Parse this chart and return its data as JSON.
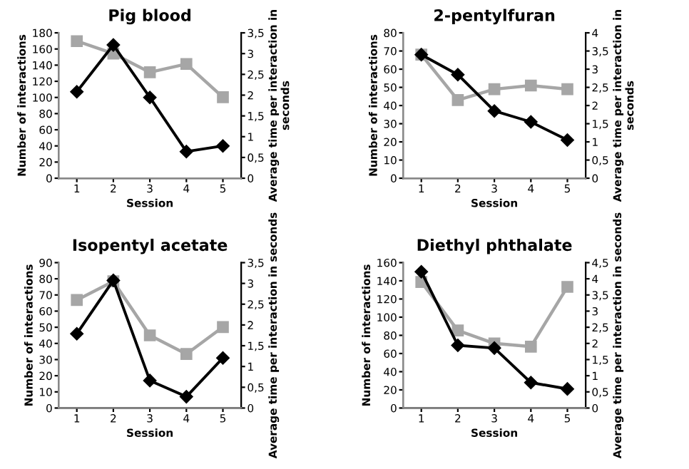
{
  "chart_data": [
    {
      "type": "line",
      "title": "Pig blood",
      "xlabel": "Session",
      "ylabel": "Number of interactions",
      "y2label": "Average time per interaction in seconds",
      "categories": [
        "1",
        "2",
        "3",
        "4",
        "5"
      ],
      "ylim": [
        0,
        180
      ],
      "yticks": [
        0,
        20,
        40,
        60,
        80,
        100,
        120,
        140,
        160,
        180
      ],
      "y2lim": [
        0,
        3.5
      ],
      "y2ticks": [
        0,
        {
          "value": 0.5,
          "label": "0,5"
        },
        1,
        {
          "value": 1.5,
          "label": "1,5"
        },
        2,
        {
          "value": 2.5,
          "label": "2,5"
        },
        3,
        {
          "value": 3.5,
          "label": "3,5"
        }
      ],
      "grid": false,
      "series": [
        {
          "color": "#000000",
          "marker": "diamond",
          "values": [
            107,
            165,
            100,
            33,
            40
          ]
        },
        {
          "color": "#a6a6a6",
          "marker": "square",
          "axis": "y2",
          "values": [
            3.3,
            3.0,
            2.55,
            2.75,
            1.95
          ]
        }
      ]
    },
    {
      "type": "line",
      "title": "2-pentylfuran",
      "xlabel": "Session",
      "ylabel": "Number of interactions",
      "y2label": "Average time per interaction in seconds",
      "categories": [
        "1",
        "2",
        "3",
        "4",
        "5"
      ],
      "ylim": [
        0,
        80
      ],
      "yticks": [
        0,
        10,
        20,
        30,
        40,
        50,
        60,
        70,
        80
      ],
      "y2lim": [
        0,
        4
      ],
      "y2ticks": [
        0,
        {
          "value": 0.5,
          "label": "0,5"
        },
        1,
        {
          "value": 1.5,
          "label": "1,5"
        },
        2,
        {
          "value": 2.5,
          "label": "2,5"
        },
        3,
        {
          "value": 3.5,
          "label": "3,5"
        },
        4
      ],
      "grid": false,
      "series": [
        {
          "color": "#000000",
          "marker": "diamond",
          "values": [
            68,
            57,
            37,
            31,
            21
          ]
        },
        {
          "color": "#a6a6a6",
          "marker": "square",
          "axis": "y2",
          "values": [
            3.4,
            2.15,
            2.45,
            2.55,
            2.45
          ]
        }
      ]
    },
    {
      "type": "line",
      "title": "Isopentyl acetate",
      "xlabel": "Session",
      "ylabel": "Number of interactions",
      "y2label": "Average time per interaction in seconds",
      "categories": [
        "1",
        "2",
        "3",
        "4",
        "5"
      ],
      "ylim": [
        0,
        90
      ],
      "yticks": [
        0,
        10,
        20,
        30,
        40,
        50,
        60,
        70,
        80,
        90
      ],
      "y2lim": [
        0,
        3.5
      ],
      "y2ticks": [
        0,
        {
          "value": 0.5,
          "label": "0,5"
        },
        1,
        {
          "value": 1.5,
          "label": "1,5"
        },
        2,
        {
          "value": 2.5,
          "label": "2,5"
        },
        3,
        {
          "value": 3.5,
          "label": "3,5"
        }
      ],
      "grid": false,
      "series": [
        {
          "color": "#000000",
          "marker": "diamond",
          "values": [
            46,
            79,
            17,
            7,
            31
          ]
        },
        {
          "color": "#a6a6a6",
          "marker": "square",
          "axis": "y2",
          "values": [
            2.6,
            3.05,
            1.75,
            1.3,
            1.95
          ]
        }
      ]
    },
    {
      "type": "line",
      "title": "Diethyl phthalate",
      "xlabel": "Session",
      "ylabel": "Number of interactions",
      "y2label": "Average time per interaction in seconds",
      "categories": [
        "1",
        "2",
        "3",
        "4",
        "5"
      ],
      "ylim": [
        0,
        160
      ],
      "yticks": [
        0,
        20,
        40,
        60,
        80,
        100,
        120,
        140,
        160
      ],
      "y2lim": [
        0,
        4.5
      ],
      "y2ticks": [
        0,
        {
          "value": 0.5,
          "label": "0,5"
        },
        1,
        {
          "value": 1.5,
          "label": "1,5"
        },
        2,
        {
          "value": 2.5,
          "label": "2,5"
        },
        3,
        {
          "value": 3.5,
          "label": "3,5"
        },
        4,
        {
          "value": 4.5,
          "label": "4,5"
        }
      ],
      "grid": false,
      "series": [
        {
          "color": "#000000",
          "marker": "diamond",
          "values": [
            150,
            69,
            66,
            28,
            21
          ]
        },
        {
          "color": "#a6a6a6",
          "marker": "square",
          "axis": "y2",
          "values": [
            3.9,
            2.4,
            2.0,
            1.9,
            3.75
          ]
        }
      ]
    }
  ]
}
